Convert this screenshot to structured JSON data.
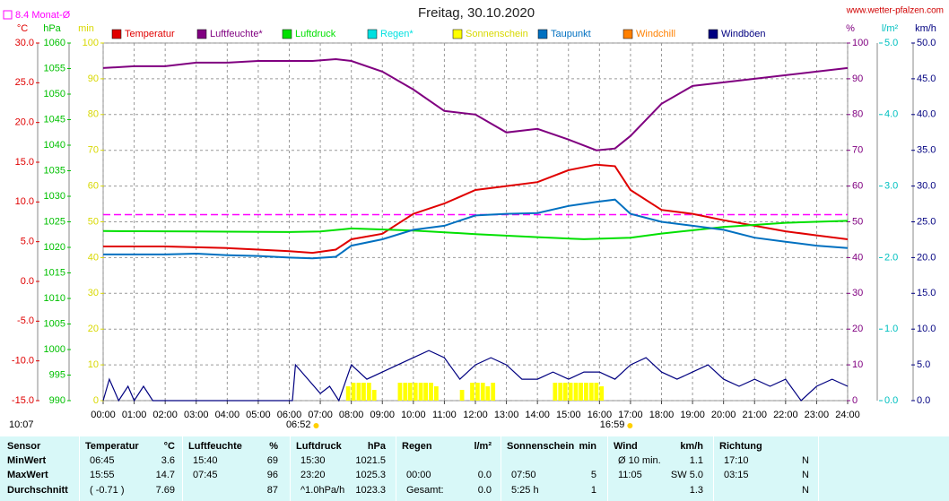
{
  "chart_data": {
    "type": "line",
    "title": "Freitag, 30.10.2020",
    "site": "www.wetter-pfalzen.com",
    "time_label": "10:07",
    "reference_line": {
      "label": "8.4 Monat-Ø",
      "value": 8.4,
      "color": "#ff00ff",
      "axis": "y"
    },
    "markers": [
      {
        "label": "06:52",
        "x": 6.867
      },
      {
        "label": "16:59",
        "x": 16.983
      }
    ],
    "xlim": [
      0,
      24
    ],
    "xticks": [
      {
        "value": 0,
        "label": "00:00"
      },
      {
        "value": 1,
        "label": "01:00"
      },
      {
        "value": 2,
        "label": "02:00"
      },
      {
        "value": 3,
        "label": "03:00"
      },
      {
        "value": 4,
        "label": "04:00"
      },
      {
        "value": 5,
        "label": "05:00"
      },
      {
        "value": 6,
        "label": "06:00"
      },
      {
        "value": 7,
        "label": "07:00"
      },
      {
        "value": 8,
        "label": "08:00"
      },
      {
        "value": 9,
        "label": "09:00"
      },
      {
        "value": 10,
        "label": "10:00"
      },
      {
        "value": 11,
        "label": "11:00"
      },
      {
        "value": 12,
        "label": "12:00"
      },
      {
        "value": 13,
        "label": "13:00"
      },
      {
        "value": 14,
        "label": "14:00"
      },
      {
        "value": 15,
        "label": "15:00"
      },
      {
        "value": 16,
        "label": "16:00"
      },
      {
        "value": 17,
        "label": "17:00"
      },
      {
        "value": 18,
        "label": "18:00"
      },
      {
        "value": 19,
        "label": "19:00"
      },
      {
        "value": 20,
        "label": "20:00"
      },
      {
        "value": 21,
        "label": "21:00"
      },
      {
        "value": 22,
        "label": "22:00"
      },
      {
        "value": 23,
        "label": "23:00"
      },
      {
        "value": 24,
        "label": "24:00"
      }
    ],
    "ylabel": "°C",
    "ylim": [
      -15,
      30
    ],
    "yticks": [
      {
        "value": 30,
        "label": "30.0"
      },
      {
        "value": 25,
        "label": "25.0"
      },
      {
        "value": 20,
        "label": "20.0"
      },
      {
        "value": 15,
        "label": "15.0"
      },
      {
        "value": 10,
        "label": "10.0"
      },
      {
        "value": 5,
        "label": "5.0"
      },
      {
        "value": 0,
        "label": "0.0"
      },
      {
        "value": -5,
        "label": "-5.0"
      },
      {
        "value": -10,
        "label": "-10.0"
      },
      {
        "value": -15,
        "label": "-15.0"
      }
    ],
    "y2label": "hPa",
    "y2lim": [
      990,
      1060
    ],
    "y2ticks": [
      1060,
      1055,
      1050,
      1045,
      1040,
      1035,
      1030,
      1025,
      1020,
      1015,
      1010,
      1005,
      1000,
      995,
      990
    ],
    "y3label": "min",
    "y3lim": [
      0,
      100
    ],
    "y3ticks": [
      100,
      90,
      80,
      70,
      60,
      50,
      40,
      30,
      20,
      10,
      0
    ],
    "y4label": "%",
    "y4lim": [
      0,
      100
    ],
    "y4ticks": [
      100,
      90,
      80,
      70,
      60,
      50,
      40,
      30,
      20,
      10,
      0
    ],
    "y5label": "l/m²",
    "y5lim": [
      0,
      5
    ],
    "y5ticks": [
      {
        "value": 5,
        "label": "5.0"
      },
      {
        "value": 4,
        "label": "4.0"
      },
      {
        "value": 3,
        "label": "3.0"
      },
      {
        "value": 2,
        "label": "2.0"
      },
      {
        "value": 1,
        "label": "1.0"
      },
      {
        "value": 0,
        "label": "0.0"
      }
    ],
    "y6label": "km/h",
    "y6lim": [
      0,
      50
    ],
    "y6ticks": [
      {
        "value": 50,
        "label": "50.0"
      },
      {
        "value": 45,
        "label": "45.0"
      },
      {
        "value": 40,
        "label": "40.0"
      },
      {
        "value": 35,
        "label": "35.0"
      },
      {
        "value": 30,
        "label": "30.0"
      },
      {
        "value": 25,
        "label": "25.0"
      },
      {
        "value": 20,
        "label": "20.0"
      },
      {
        "value": 15,
        "label": "15.0"
      },
      {
        "value": 10,
        "label": "10.0"
      },
      {
        "value": 5,
        "label": "5.0"
      },
      {
        "value": 0,
        "label": "0.0"
      }
    ],
    "grid": true,
    "series": [
      {
        "name": "Temperatur",
        "color": "#e00000",
        "axis": "y",
        "x": [
          0,
          1,
          2,
          3,
          4,
          5,
          6,
          6.75,
          7.5,
          8,
          9,
          10,
          11,
          12,
          13,
          14,
          15,
          15.9,
          16.5,
          17,
          18,
          19,
          20,
          21,
          22,
          23,
          24
        ],
        "values": [
          4.4,
          4.4,
          4.4,
          4.3,
          4.2,
          4.0,
          3.8,
          3.6,
          4.0,
          5.3,
          6.0,
          8.5,
          9.8,
          11.5,
          12.0,
          12.5,
          14.0,
          14.7,
          14.5,
          11.5,
          9.0,
          8.5,
          7.7,
          7.0,
          6.3,
          5.8,
          5.3
        ]
      },
      {
        "name": "Luftfeuchte*",
        "color": "#800080",
        "axis": "y4",
        "x": [
          0,
          1,
          2,
          3,
          4,
          5,
          6,
          6.75,
          7.5,
          8,
          9,
          10,
          11,
          12,
          13,
          14,
          15,
          15.9,
          16.5,
          17,
          18,
          19,
          20,
          21,
          22,
          23,
          24
        ],
        "values": [
          93,
          93.5,
          93.5,
          94.5,
          94.5,
          95,
          95,
          95,
          95.5,
          95,
          92,
          87,
          81,
          80,
          75,
          76,
          73,
          70,
          70.5,
          74,
          83,
          88,
          89,
          90,
          91,
          92,
          93
        ]
      },
      {
        "name": "Luftdruck",
        "color": "#00e000",
        "axis": "y2",
        "x": [
          0,
          3,
          6,
          7,
          8,
          10,
          12,
          14,
          15.5,
          17,
          18,
          20,
          22,
          24
        ],
        "values": [
          1023.2,
          1023.1,
          1023.0,
          1023.1,
          1023.7,
          1023.3,
          1022.6,
          1022.0,
          1021.6,
          1021.9,
          1022.7,
          1024.0,
          1024.8,
          1025.2
        ]
      },
      {
        "name": "Regen*",
        "color": "#00e0e0",
        "axis": "y5"
      },
      {
        "name": "Sonnenschein",
        "color": "#ffff00",
        "axis": "y3",
        "kind": "bar",
        "x": [
          7.83,
          8.0,
          8.17,
          8.33,
          8.5,
          8.67,
          9.5,
          9.67,
          9.83,
          10.0,
          10.17,
          10.33,
          10.5,
          10.67,
          11.5,
          11.83,
          12.0,
          12.17,
          12.33,
          12.5,
          14.5,
          14.67,
          14.83,
          15.0,
          15.17,
          15.33,
          15.5,
          15.67,
          15.83,
          16.0
        ],
        "values": [
          4,
          5,
          5,
          5,
          5,
          3,
          5,
          5,
          5,
          5,
          5,
          5,
          5,
          4,
          3,
          5,
          5,
          5,
          4,
          5,
          5,
          5,
          5,
          5,
          5,
          5,
          5,
          5,
          5,
          4
        ]
      },
      {
        "name": "Taupunkt",
        "color": "#0070c0",
        "axis": "y",
        "x": [
          0,
          1,
          2,
          3,
          4,
          5,
          6,
          6.75,
          7.5,
          8,
          9,
          10,
          11,
          12,
          13,
          14,
          15,
          15.9,
          16.5,
          17,
          18,
          19,
          20,
          21,
          22,
          23,
          24
        ],
        "values": [
          3.4,
          3.4,
          3.4,
          3.5,
          3.3,
          3.2,
          3.0,
          2.9,
          3.1,
          4.5,
          5.3,
          6.5,
          7.0,
          8.3,
          8.5,
          8.6,
          9.5,
          10.0,
          10.3,
          8.5,
          7.5,
          7.0,
          6.5,
          5.5,
          5.0,
          4.5,
          4.2
        ]
      },
      {
        "name": "Windchill",
        "color": "#ff8000",
        "axis": "y"
      },
      {
        "name": "Windböen",
        "color": "#000080",
        "axis": "y6",
        "x": [
          0,
          0.2,
          0.5,
          0.8,
          1,
          1.3,
          1.6,
          2,
          6.1,
          6.2,
          6.6,
          7,
          7.3,
          7.6,
          8,
          8.5,
          9,
          9.5,
          10,
          10.5,
          11,
          11.5,
          12,
          12.5,
          13,
          13.5,
          14,
          14.5,
          15,
          15.5,
          16,
          16.5,
          17,
          17.5,
          18,
          18.5,
          19,
          19.5,
          20,
          20.5,
          21,
          21.5,
          22,
          22.5,
          23,
          23.5,
          24
        ],
        "values": [
          0,
          3,
          0,
          2,
          0,
          2,
          0,
          0,
          0,
          5,
          3,
          1,
          2,
          0,
          5,
          3,
          4,
          5,
          6,
          7,
          6,
          3,
          5,
          6,
          5,
          3,
          3,
          4,
          3,
          4,
          4,
          3,
          5,
          6,
          4,
          3,
          4,
          5,
          3,
          2,
          3,
          2,
          3,
          0,
          2,
          3,
          2
        ]
      }
    ]
  },
  "table": {
    "sensor": {
      "head": "Sensor",
      "rows": [
        "MinWert",
        "MaxWert",
        "Durchschnitt"
      ]
    },
    "columns": [
      {
        "head": "Temperatur",
        "unit": "°C",
        "rows": [
          [
            "06:45",
            "3.6"
          ],
          [
            "15:55",
            "14.7"
          ],
          [
            "( -0.71 )",
            "7.69"
          ]
        ]
      },
      {
        "head": "Luftfeuchte",
        "unit": "%",
        "rows": [
          [
            "15:40",
            "69"
          ],
          [
            "07:45",
            "96"
          ],
          [
            null,
            "87"
          ]
        ]
      },
      {
        "head": "Luftdruck",
        "unit": "hPa",
        "rows": [
          [
            "15:30",
            "1021.5"
          ],
          [
            "23:20",
            "1025.3"
          ],
          [
            "^1.0hPa/h",
            "1023.3"
          ]
        ]
      },
      {
        "head": "Regen",
        "unit": "l/m²",
        "rows": [
          [
            null,
            null
          ],
          [
            "00:00",
            "0.0"
          ],
          [
            "Gesamt:",
            "0.0"
          ]
        ]
      },
      {
        "head": "Sonnenschein",
        "unit": "min",
        "rows": [
          [
            null,
            null
          ],
          [
            "07:50",
            "5"
          ],
          [
            "5:25 h",
            "1"
          ]
        ]
      },
      {
        "head": "Wind",
        "unit": "km/h",
        "rows": [
          [
            "Ø 10 min.",
            "1.1"
          ],
          [
            "11:05",
            "SW 5.0"
          ],
          [
            null,
            "1.3"
          ]
        ]
      },
      {
        "head": "Richtung",
        "unit": null,
        "rows": [
          [
            "17:10",
            "N"
          ],
          [
            "03:15",
            "N"
          ],
          [
            null,
            "N"
          ]
        ]
      }
    ]
  }
}
